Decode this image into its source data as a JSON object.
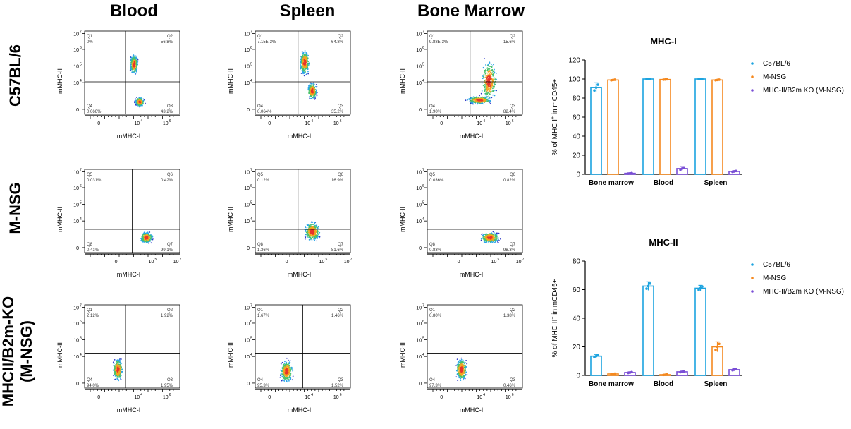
{
  "columns": [
    "Blood",
    "Spleen",
    "Bone Marrow"
  ],
  "rows": [
    {
      "label_line1": "C57BL/6",
      "label_line2": ""
    },
    {
      "label_line1": "M-NSG",
      "label_line2": ""
    },
    {
      "label_line1": "MHCII/B2m-KO",
      "label_line2": "(M-NSG)"
    }
  ],
  "flow": {
    "xlabel": "mMHC-I",
    "ylabel": "mMHC-II",
    "y_ticks_main": [
      "10",
      "10",
      "10",
      "10",
      "0"
    ],
    "y_ticks_exp": [
      "7",
      "6",
      "5",
      "4",
      ""
    ],
    "x_ticks_main": [
      "0",
      "10",
      "10"
    ],
    "x_ticks_exp": [
      "",
      "4",
      "6"
    ],
    "x_ticks_main_r2": [
      "0",
      "10",
      "10"
    ],
    "x_ticks_exp_r2": [
      "",
      "5",
      "7"
    ],
    "plots": [
      {
        "q": [
          "Q1",
          "Q2",
          "Q4",
          "Q3"
        ],
        "vals": [
          "0%",
          "56.8%",
          "0.066%",
          "43.2%"
        ]
      },
      {
        "q": [
          "Q1",
          "Q2",
          "Q4",
          "Q3"
        ],
        "vals": [
          "7.15E-3%",
          "64.8%",
          "0.064%",
          "35.2%"
        ]
      },
      {
        "q": [
          "Q1",
          "Q2",
          "Q4",
          "Q3"
        ],
        "vals": [
          "9.88E-3%",
          "15.6%",
          "1.90%",
          "82.4%"
        ]
      },
      {
        "q": [
          "Q5",
          "Q6",
          "Q8",
          "Q7"
        ],
        "vals": [
          "0.031%",
          "0.42%",
          "0.41%",
          "99.1%"
        ]
      },
      {
        "q": [
          "Q5",
          "Q6",
          "Q8",
          "Q7"
        ],
        "vals": [
          "0.12%",
          "16.9%",
          "1.36%",
          "81.6%"
        ]
      },
      {
        "q": [
          "Q5",
          "Q6",
          "Q8",
          "Q7"
        ],
        "vals": [
          "0.036%",
          "0.82%",
          "0.83%",
          "98.3%"
        ]
      },
      {
        "q": [
          "Q1",
          "Q2",
          "Q4",
          "Q3"
        ],
        "vals": [
          "2.12%",
          "1.92%",
          "94.0%",
          "1.95%"
        ]
      },
      {
        "q": [
          "Q1",
          "Q2",
          "Q4",
          "Q3"
        ],
        "vals": [
          "1.67%",
          "1.46%",
          "95.3%",
          "1.52%"
        ]
      },
      {
        "q": [
          "Q1",
          "Q2",
          "Q4",
          "Q3"
        ],
        "vals": [
          "0.80%",
          "1.38%",
          "97.3%",
          "0.46%"
        ]
      }
    ]
  },
  "chart_data": [
    {
      "type": "bar",
      "title": "MHC-I",
      "ylabel_pre": "% of MHC I",
      "ylabel_sup": "+",
      "ylabel_post": " in mCD45+",
      "categories": [
        "Bone marrow",
        "Blood",
        "Spleen"
      ],
      "ylim": [
        0,
        120
      ],
      "yticks": [
        0,
        20,
        40,
        60,
        80,
        100,
        120
      ],
      "series": [
        {
          "name": "C57BL/6",
          "color": "#1ca3df",
          "values": [
            91,
            100,
            100
          ],
          "err": [
            5,
            0,
            0
          ]
        },
        {
          "name": "M-NSG",
          "color": "#f5891f",
          "values": [
            99,
            99.5,
            99
          ],
          "err": [
            0.5,
            0.3,
            0.5
          ]
        },
        {
          "name": "MHC-II/B2m KO (M-NSG)",
          "color": "#7a4fd6",
          "values": [
            1,
            6,
            3
          ],
          "err": [
            0.5,
            2,
            0.8
          ]
        }
      ],
      "legend": "right"
    },
    {
      "type": "bar",
      "title": "MHC-II",
      "ylabel_pre": "% of MHC II",
      "ylabel_sup": "+",
      "ylabel_post": " in mCD45+",
      "categories": [
        "Bone marrow",
        "Blood",
        "Spleen"
      ],
      "ylim": [
        0,
        80
      ],
      "yticks": [
        0,
        20,
        40,
        60,
        80
      ],
      "series": [
        {
          "name": "C57BL/6",
          "color": "#1ca3df",
          "values": [
            13.5,
            62.5,
            61
          ],
          "err": [
            1.2,
            3,
            2
          ]
        },
        {
          "name": "M-NSG",
          "color": "#f5891f",
          "values": [
            1,
            0.5,
            20
          ],
          "err": [
            0.3,
            0.3,
            3.5
          ]
        },
        {
          "name": "MHC-II/B2m KO (M-NSG)",
          "color": "#7a4fd6",
          "values": [
            2,
            2.5,
            4
          ],
          "err": [
            0.5,
            0.5,
            0.7
          ]
        }
      ],
      "legend": "right"
    }
  ]
}
